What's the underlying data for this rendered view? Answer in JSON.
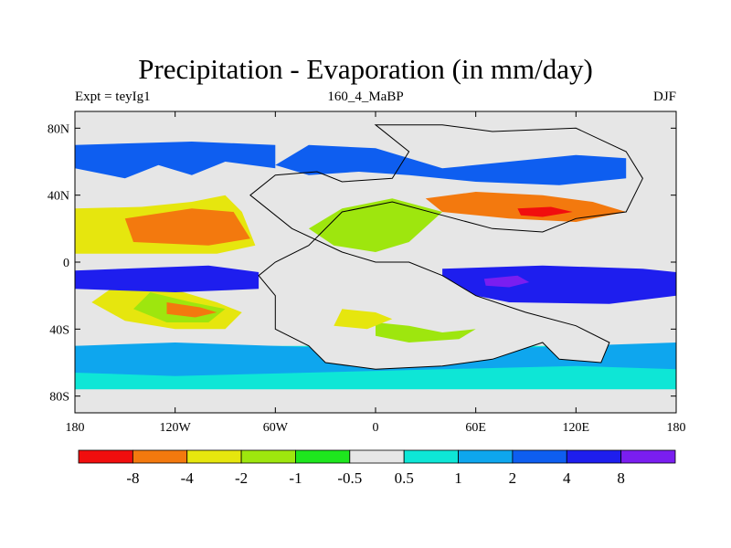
{
  "title": "Precipitation - Evaporation (in mm/day)",
  "subtitle_left": "Expt = teyIg1",
  "subtitle_center": "160_4_MaBP",
  "subtitle_right": "DJF",
  "chart_data": {
    "type": "heatmap",
    "title": "Precipitation - Evaporation (in mm/day)",
    "projection": "cylindrical equidistant",
    "xlim": [
      -180,
      180
    ],
    "ylim": [
      -90,
      90
    ],
    "x_ticks": [
      {
        "value": -180,
        "label": "180"
      },
      {
        "value": -120,
        "label": "120W"
      },
      {
        "value": -60,
        "label": "60W"
      },
      {
        "value": 0,
        "label": "0"
      },
      {
        "value": 60,
        "label": "60E"
      },
      {
        "value": 120,
        "label": "120E"
      },
      {
        "value": 180,
        "label": "180"
      }
    ],
    "y_ticks": [
      {
        "value": 80,
        "label": "80N"
      },
      {
        "value": 40,
        "label": "40N"
      },
      {
        "value": 0,
        "label": "0"
      },
      {
        "value": -40,
        "label": "40S"
      },
      {
        "value": -80,
        "label": "80S"
      }
    ],
    "colorbar": {
      "colors": [
        "#f10e0e",
        "#f3790e",
        "#e6e60e",
        "#9ee60e",
        "#1ee61e",
        "#e6e6e6",
        "#0ee6d6",
        "#0ea6ee",
        "#0e5ef0",
        "#1e1eee",
        "#7a1ef0"
      ],
      "labels": [
        "-8",
        "-4",
        "-2",
        "-1",
        "-0.5",
        "0.5",
        "1",
        "2",
        "4",
        "8"
      ]
    },
    "regions": [
      {
        "name": "southern ocean high-lat",
        "color": "#0ee6d6",
        "points": [
          [
            -180,
            -76
          ],
          [
            180,
            -76
          ],
          [
            180,
            -50
          ],
          [
            -180,
            -50
          ]
        ]
      },
      {
        "name": "southern mid-lat band",
        "color": "#0ea6ee",
        "points": [
          [
            -180,
            -66
          ],
          [
            -120,
            -68
          ],
          [
            -40,
            -66
          ],
          [
            40,
            -64
          ],
          [
            120,
            -62
          ],
          [
            180,
            -64
          ],
          [
            180,
            -48
          ],
          [
            120,
            -50
          ],
          [
            60,
            -52
          ],
          [
            0,
            -52
          ],
          [
            -60,
            -50
          ],
          [
            -120,
            -48
          ],
          [
            -180,
            -50
          ]
        ]
      },
      {
        "name": "south pacific dry",
        "color": "#e6e60e",
        "points": [
          [
            -150,
            -10
          ],
          [
            -115,
            -18
          ],
          [
            -95,
            -24
          ],
          [
            -80,
            -30
          ],
          [
            -90,
            -40
          ],
          [
            -120,
            -40
          ],
          [
            -150,
            -35
          ],
          [
            -170,
            -24
          ]
        ]
      },
      {
        "name": "south pacific core",
        "color": "#9ee60e",
        "points": [
          [
            -135,
            -18
          ],
          [
            -110,
            -24
          ],
          [
            -90,
            -28
          ],
          [
            -100,
            -36
          ],
          [
            -125,
            -36
          ],
          [
            -145,
            -28
          ]
        ]
      },
      {
        "name": "south pacific hot",
        "color": "#f3790e",
        "points": [
          [
            -125,
            -24
          ],
          [
            -105,
            -27
          ],
          [
            -95,
            -30
          ],
          [
            -108,
            -33
          ],
          [
            -125,
            -31
          ]
        ]
      },
      {
        "name": "pacific itcz south",
        "color": "#1e1eee",
        "points": [
          [
            -180,
            -5
          ],
          [
            -100,
            -2
          ],
          [
            -70,
            -6
          ],
          [
            -70,
            -16
          ],
          [
            -120,
            -18
          ],
          [
            -180,
            -16
          ]
        ]
      },
      {
        "name": "indian ocean wet",
        "color": "#1e1eee",
        "points": [
          [
            40,
            -4
          ],
          [
            100,
            -2
          ],
          [
            160,
            -4
          ],
          [
            180,
            -6
          ],
          [
            180,
            -20
          ],
          [
            140,
            -25
          ],
          [
            80,
            -24
          ],
          [
            40,
            -16
          ]
        ]
      },
      {
        "name": "indian ocean wet core",
        "color": "#7a1ef0",
        "points": [
          [
            65,
            -10
          ],
          [
            85,
            -8
          ],
          [
            92,
            -12
          ],
          [
            80,
            -15
          ],
          [
            66,
            -14
          ]
        ]
      },
      {
        "name": "north pacific dry",
        "color": "#e6e60e",
        "points": [
          [
            -180,
            32
          ],
          [
            -140,
            33
          ],
          [
            -110,
            36
          ],
          [
            -90,
            40
          ],
          [
            -80,
            30
          ],
          [
            -72,
            10
          ],
          [
            -95,
            5
          ],
          [
            -140,
            5
          ],
          [
            -180,
            5
          ]
        ]
      },
      {
        "name": "north pacific hot",
        "color": "#f3790e",
        "points": [
          [
            -150,
            26
          ],
          [
            -110,
            32
          ],
          [
            -85,
            30
          ],
          [
            -75,
            14
          ],
          [
            -100,
            10
          ],
          [
            -145,
            12
          ]
        ]
      },
      {
        "name": "north pacific storm track",
        "color": "#0e5ef0",
        "points": [
          [
            -180,
            56
          ],
          [
            -150,
            50
          ],
          [
            -130,
            58
          ],
          [
            -110,
            52
          ],
          [
            -90,
            60
          ],
          [
            -60,
            56
          ],
          [
            -60,
            70
          ],
          [
            -110,
            72
          ],
          [
            -180,
            70
          ]
        ]
      },
      {
        "name": "pangaea continent",
        "color": "#e6e6e6",
        "points": [
          [
            -75,
            40
          ],
          [
            -60,
            52
          ],
          [
            -35,
            54
          ],
          [
            -20,
            48
          ],
          [
            10,
            50
          ],
          [
            20,
            66
          ],
          [
            0,
            82
          ],
          [
            40,
            82
          ],
          [
            70,
            78
          ],
          [
            120,
            80
          ],
          [
            150,
            66
          ],
          [
            160,
            50
          ],
          [
            150,
            30
          ],
          [
            120,
            26
          ],
          [
            100,
            18
          ],
          [
            70,
            20
          ],
          [
            40,
            28
          ],
          [
            10,
            36
          ],
          [
            -20,
            30
          ],
          [
            -40,
            10
          ],
          [
            -60,
            0
          ],
          [
            -70,
            -8
          ],
          [
            -60,
            -20
          ],
          [
            -60,
            -40
          ],
          [
            -40,
            -50
          ],
          [
            -30,
            -60
          ],
          [
            0,
            -64
          ],
          [
            40,
            -62
          ],
          [
            70,
            -58
          ],
          [
            100,
            -48
          ],
          [
            110,
            -58
          ],
          [
            135,
            -60
          ],
          [
            140,
            -48
          ],
          [
            120,
            -38
          ],
          [
            90,
            -30
          ],
          [
            60,
            -20
          ],
          [
            40,
            -8
          ],
          [
            20,
            0
          ],
          [
            0,
            0
          ],
          [
            -20,
            6
          ],
          [
            -50,
            20
          ]
        ]
      },
      {
        "name": "tethys green",
        "color": "#9ee60e",
        "points": [
          [
            -40,
            20
          ],
          [
            -20,
            32
          ],
          [
            10,
            38
          ],
          [
            40,
            30
          ],
          [
            20,
            12
          ],
          [
            0,
            6
          ],
          [
            -25,
            10
          ]
        ]
      },
      {
        "name": "tethys hot",
        "color": "#f3790e",
        "points": [
          [
            30,
            38
          ],
          [
            60,
            42
          ],
          [
            100,
            40
          ],
          [
            130,
            36
          ],
          [
            150,
            30
          ],
          [
            120,
            24
          ],
          [
            80,
            26
          ],
          [
            40,
            30
          ]
        ]
      },
      {
        "name": "tethys core",
        "color": "#f10e0e",
        "points": [
          [
            85,
            32
          ],
          [
            105,
            33
          ],
          [
            118,
            30
          ],
          [
            100,
            27
          ],
          [
            87,
            28
          ]
        ]
      },
      {
        "name": "north continent wet",
        "color": "#0e5ef0",
        "points": [
          [
            -60,
            58
          ],
          [
            -40,
            70
          ],
          [
            0,
            68
          ],
          [
            20,
            62
          ],
          [
            40,
            56
          ],
          [
            80,
            60
          ],
          [
            120,
            64
          ],
          [
            150,
            62
          ],
          [
            150,
            50
          ],
          [
            110,
            46
          ],
          [
            60,
            48
          ],
          [
            20,
            52
          ],
          [
            -10,
            54
          ],
          [
            -40,
            52
          ]
        ]
      },
      {
        "name": "south africa green",
        "color": "#9ee60e",
        "points": [
          [
            0,
            -36
          ],
          [
            20,
            -38
          ],
          [
            40,
            -42
          ],
          [
            60,
            -40
          ],
          [
            50,
            -46
          ],
          [
            20,
            -48
          ],
          [
            0,
            -44
          ]
        ]
      },
      {
        "name": "south america dry",
        "color": "#e6e60e",
        "points": [
          [
            -20,
            -28
          ],
          [
            0,
            -30
          ],
          [
            10,
            -34
          ],
          [
            -5,
            -40
          ],
          [
            -25,
            -38
          ]
        ]
      }
    ]
  }
}
